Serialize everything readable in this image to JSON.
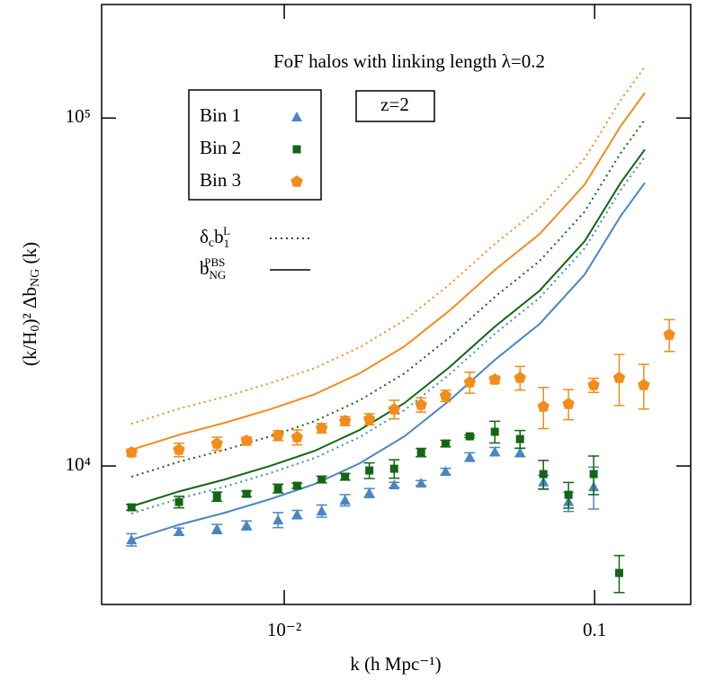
{
  "chart_data": {
    "type": "scatter",
    "title": "FoF halos with linking length λ=0.2",
    "annotation": "z=2",
    "x_label": "k (h Mpc⁻¹)",
    "y_label_parts": [
      "(k/H",
      "0",
      ")² Δb",
      "NG",
      " (k)"
    ],
    "log_x": true,
    "log_y": true,
    "xlim": [
      0.00258,
      0.204
    ],
    "ylim": [
      4000,
      212000
    ],
    "xticks": [
      {
        "value": 0.01,
        "label": "10⁻²"
      },
      {
        "value": 0.1,
        "label": "0.1"
      }
    ],
    "yticks": [
      {
        "value": 10000,
        "label": "10⁴"
      },
      {
        "value": 100000,
        "label": "10⁵"
      }
    ],
    "series": [
      {
        "name": "Bin 1",
        "color": "#4a86c0",
        "marker": "triangle",
        "x": [
          0.00322,
          0.00458,
          0.00607,
          0.00756,
          0.00955,
          0.011,
          0.0132,
          0.0157,
          0.0188,
          0.0226,
          0.0276,
          0.0331,
          0.0396,
          0.0477,
          0.0575,
          0.0684,
          0.0824,
          0.0993
        ],
        "values": [
          6138,
          6477,
          6594,
          6753,
          6998,
          7252,
          7427,
          7977,
          8365,
          8827,
          8933,
          9650,
          10612,
          10999,
          10934,
          9000,
          7900,
          8720
        ],
        "errors": [
          250,
          150,
          200,
          200,
          350,
          200,
          300,
          300,
          250,
          150,
          150,
          200,
          300,
          300,
          300,
          400,
          500,
          1200
        ]
      },
      {
        "name": "Bin 2",
        "color": "#146614",
        "marker": "square",
        "x": [
          0.00322,
          0.00458,
          0.00607,
          0.00756,
          0.00955,
          0.011,
          0.0132,
          0.0157,
          0.0188,
          0.0226,
          0.0276,
          0.0331,
          0.0396,
          0.0477,
          0.0575,
          0.0684,
          0.0824,
          0.0993,
          0.12
        ],
        "values": [
          7606,
          7881,
          8167,
          8316,
          8618,
          8774,
          9146,
          9311,
          9707,
          9822,
          10934,
          11600,
          12170,
          12540,
          11950,
          9478,
          8266,
          9478,
          4927
        ],
        "errors": [
          150,
          300,
          250,
          150,
          250,
          150,
          200,
          200,
          500,
          600,
          300,
          250,
          100,
          900,
          700,
          900,
          700,
          1200,
          600
        ]
      },
      {
        "name": "Bin 3",
        "color": "#f28c1b",
        "marker": "pentagon",
        "x": [
          0.00322,
          0.00458,
          0.00607,
          0.00756,
          0.00955,
          0.011,
          0.0132,
          0.0157,
          0.0188,
          0.0226,
          0.0276,
          0.0331,
          0.0396,
          0.0477,
          0.0575,
          0.0684,
          0.0824,
          0.0993,
          0.12,
          0.144,
          0.174
        ],
        "values": [
          10934,
          11130,
          11600,
          11815,
          12240,
          12095,
          12840,
          13470,
          13630,
          14550,
          14990,
          15910,
          17390,
          17710,
          17920,
          14810,
          15080,
          17080,
          17920,
          17080,
          23840
        ],
        "errors": [
          250,
          500,
          500,
          300,
          400,
          600,
          400,
          400,
          500,
          900,
          700,
          600,
          1200,
          400,
          1400,
          2000,
          1500,
          800,
          3000,
          2500,
          2500
        ]
      }
    ],
    "line_x": [
      0.00322,
      0.00461,
      0.00644,
      0.00899,
      0.01256,
      0.0175,
      0.0244,
      0.0341,
      0.0477,
      0.0665,
      0.0929,
      0.1213,
      0.1452
    ],
    "lines": [
      {
        "color": "#f28c1b",
        "style": "dotted",
        "values": [
          13220,
          14630,
          15810,
          17290,
          19120,
          21930,
          26220,
          33250,
          43470,
          55150,
          76500,
          112600,
          140300
        ]
      },
      {
        "color": "#f28c1b",
        "style": "solid",
        "values": [
          11130,
          12310,
          13310,
          14550,
          16090,
          18460,
          22070,
          27990,
          36590,
          46420,
          64390,
          94780,
          118130
        ]
      },
      {
        "color": "#146614",
        "style": "dotted",
        "values": [
          9311,
          10300,
          11130,
          12170,
          13460,
          15440,
          18460,
          23420,
          30610,
          38830,
          53870,
          79290,
          98830
        ]
      },
      {
        "color": "#146614",
        "style": "solid",
        "values": [
          7651,
          8462,
          9149,
          10000,
          11060,
          12690,
          15170,
          19240,
          25150,
          31910,
          44260,
          65150,
          81200
        ]
      },
      {
        "color": "#4a86c0",
        "style": "dotted",
        "values": [
          7297,
          8070,
          8726,
          9539,
          10550,
          12100,
          14470,
          18350,
          23990,
          30430,
          42210,
          62140,
          77450
        ]
      },
      {
        "color": "#4a86c0",
        "style": "solid",
        "values": [
          6138,
          6789,
          7341,
          8024,
          8874,
          10180,
          12170,
          15440,
          20180,
          25600,
          35510,
          52270,
          65150
        ]
      }
    ],
    "line_legend": [
      {
        "style": "dotted",
        "parts": [
          "δ",
          "c",
          "b",
          "1",
          "L"
        ]
      },
      {
        "style": "solid",
        "parts": [
          "b",
          "NG",
          "PBS"
        ]
      }
    ]
  }
}
